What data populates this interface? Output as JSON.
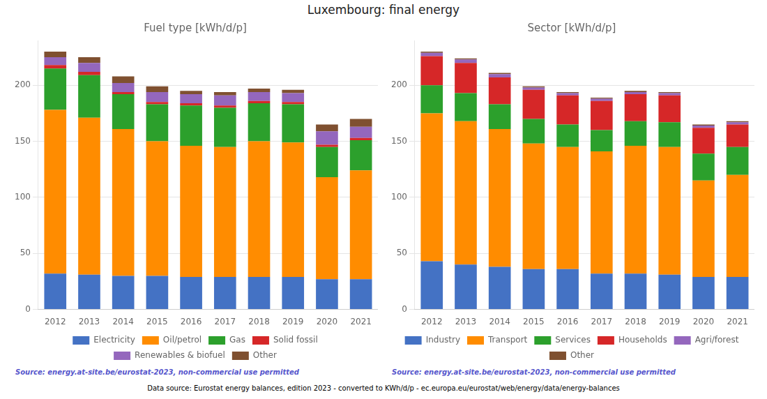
{
  "title": "Luxembourg: final energy",
  "annotations": [
    "Data source: Eurostat energy balances, edition 2023 - converted to KWh/d/p - ec.europa.eu/eurostat/web/energy/data/energy-balances"
  ],
  "chart_data": [
    {
      "type": "bar",
      "title": "Fuel type [kWh/d/p]",
      "stacked": true,
      "grid": true,
      "legend": "bottom",
      "categories": [
        "2012",
        "2013",
        "2014",
        "2015",
        "2016",
        "2017",
        "2018",
        "2019",
        "2020",
        "2021"
      ],
      "series": [
        {
          "name": "Electricity",
          "color": "#4472c4",
          "values": [
            32,
            31,
            30,
            30,
            29,
            29,
            29,
            29,
            27,
            27
          ]
        },
        {
          "name": "Oil/petrol",
          "color": "#ff8c00",
          "values": [
            146,
            140,
            131,
            120,
            117,
            116,
            121,
            120,
            91,
            97
          ]
        },
        {
          "name": "Gas",
          "color": "#2ca02c",
          "values": [
            37,
            38,
            31,
            33,
            36,
            35,
            34,
            34,
            27,
            27
          ]
        },
        {
          "name": "Solid fossil",
          "color": "#d62728",
          "values": [
            3,
            3,
            2,
            2,
            2,
            2,
            2,
            2,
            2,
            2
          ]
        },
        {
          "name": "Renewables & biofuel",
          "color": "#9467bd",
          "values": [
            7,
            8,
            8,
            9,
            8,
            9,
            8,
            8,
            12,
            10
          ]
        },
        {
          "name": "Other",
          "color": "#7f5030",
          "values": [
            5,
            5,
            6,
            5,
            3,
            3,
            3,
            3,
            6,
            7
          ]
        }
      ],
      "ylim": [
        0,
        240
      ],
      "yticks": [
        0,
        50,
        100,
        150,
        200
      ],
      "annotations": [
        "Source: energy.at-site.be/eurostat-2023, non-commercial use permitted"
      ]
    },
    {
      "type": "bar",
      "title": "Sector [kWh/d/p]",
      "stacked": true,
      "grid": true,
      "legend": "bottom",
      "categories": [
        "2012",
        "2013",
        "2014",
        "2015",
        "2016",
        "2017",
        "2018",
        "2019",
        "2020",
        "2021"
      ],
      "series": [
        {
          "name": "Industry",
          "color": "#4472c4",
          "values": [
            43,
            40,
            38,
            36,
            36,
            32,
            32,
            31,
            29,
            29
          ]
        },
        {
          "name": "Transport",
          "color": "#ff8c00",
          "values": [
            132,
            128,
            123,
            112,
            109,
            109,
            114,
            114,
            86,
            91
          ]
        },
        {
          "name": "Services",
          "color": "#2ca02c",
          "values": [
            25,
            25,
            22,
            22,
            20,
            19,
            22,
            22,
            24,
            25
          ]
        },
        {
          "name": "Households",
          "color": "#d62728",
          "values": [
            26,
            27,
            24,
            26,
            26,
            26,
            24,
            24,
            23,
            20
          ]
        },
        {
          "name": "Agri/forest",
          "color": "#9467bd",
          "values": [
            3,
            3,
            3,
            2,
            2,
            2,
            2,
            2,
            2,
            2
          ]
        },
        {
          "name": "Other",
          "color": "#7f5030",
          "values": [
            1,
            1,
            1,
            1,
            1,
            1,
            1,
            1,
            1,
            1
          ]
        }
      ],
      "ylim": [
        0,
        240
      ],
      "yticks": [
        0,
        50,
        100,
        150,
        200
      ],
      "annotations": [
        "Source: energy.at-site.be/eurostat-2023, non-commercial use permitted"
      ]
    }
  ]
}
